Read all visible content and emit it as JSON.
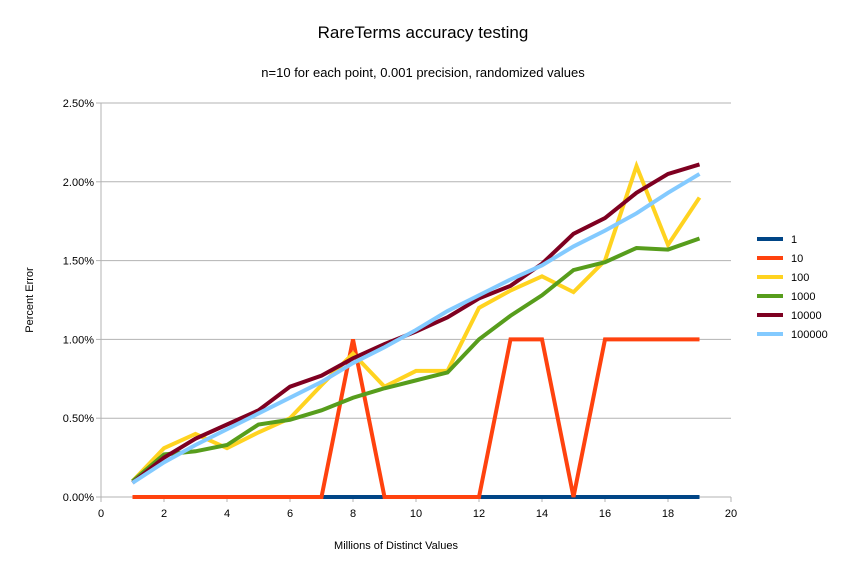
{
  "chart_data": {
    "type": "line",
    "title": "RareTerms accuracy testing",
    "subtitle": "n=10 for each point, 0.001 precision, randomized values",
    "xlabel": "Millions of Distinct Values",
    "ylabel": "Percent Error",
    "xlim": [
      0,
      20
    ],
    "ylim": [
      0,
      2.5
    ],
    "xticks": [
      "0",
      "2",
      "4",
      "6",
      "8",
      "10",
      "12",
      "14",
      "16",
      "18",
      "20"
    ],
    "yticks": [
      "0.00%",
      "0.50%",
      "1.00%",
      "1.50%",
      "2.00%",
      "2.50%"
    ],
    "grid": "horizontal",
    "legend": "right",
    "x": [
      1,
      2,
      3,
      4,
      5,
      6,
      7,
      8,
      9,
      10,
      11,
      12,
      13,
      14,
      15,
      16,
      17,
      18,
      19
    ],
    "series": [
      {
        "name": "1",
        "color": "#004586",
        "values": [
          0,
          0,
          0,
          0,
          0,
          0,
          0,
          0,
          0,
          0,
          0,
          0,
          0,
          0,
          0,
          0,
          0,
          0,
          0
        ]
      },
      {
        "name": "10",
        "color": "#ff420e",
        "values": [
          0,
          0,
          0,
          0,
          0,
          0,
          0,
          1.0,
          0,
          0,
          0,
          0,
          1.0,
          1.0,
          0,
          1.0,
          1.0,
          1.0,
          1.0
        ]
      },
      {
        "name": "100",
        "color": "#ffd320",
        "values": [
          0.1,
          0.31,
          0.4,
          0.31,
          0.41,
          0.5,
          0.71,
          0.91,
          0.7,
          0.8,
          0.8,
          1.2,
          1.31,
          1.4,
          1.3,
          1.5,
          2.1,
          1.6,
          1.9
        ]
      },
      {
        "name": "1000",
        "color": "#579d1c",
        "values": [
          0.1,
          0.27,
          0.29,
          0.33,
          0.46,
          0.49,
          0.55,
          0.63,
          0.69,
          0.74,
          0.79,
          1.0,
          1.15,
          1.28,
          1.44,
          1.49,
          1.58,
          1.57,
          1.64
        ]
      },
      {
        "name": "10000",
        "color": "#7e0021",
        "values": [
          0.09,
          0.25,
          0.37,
          0.46,
          0.55,
          0.7,
          0.77,
          0.88,
          0.97,
          1.05,
          1.14,
          1.26,
          1.34,
          1.48,
          1.67,
          1.77,
          1.93,
          2.05,
          2.11
        ]
      },
      {
        "name": "100000",
        "color": "#83caff",
        "values": [
          0.09,
          0.22,
          0.33,
          0.43,
          0.53,
          0.63,
          0.73,
          0.85,
          0.95,
          1.06,
          1.18,
          1.28,
          1.38,
          1.47,
          1.59,
          1.69,
          1.8,
          1.93,
          2.05
        ]
      }
    ]
  }
}
